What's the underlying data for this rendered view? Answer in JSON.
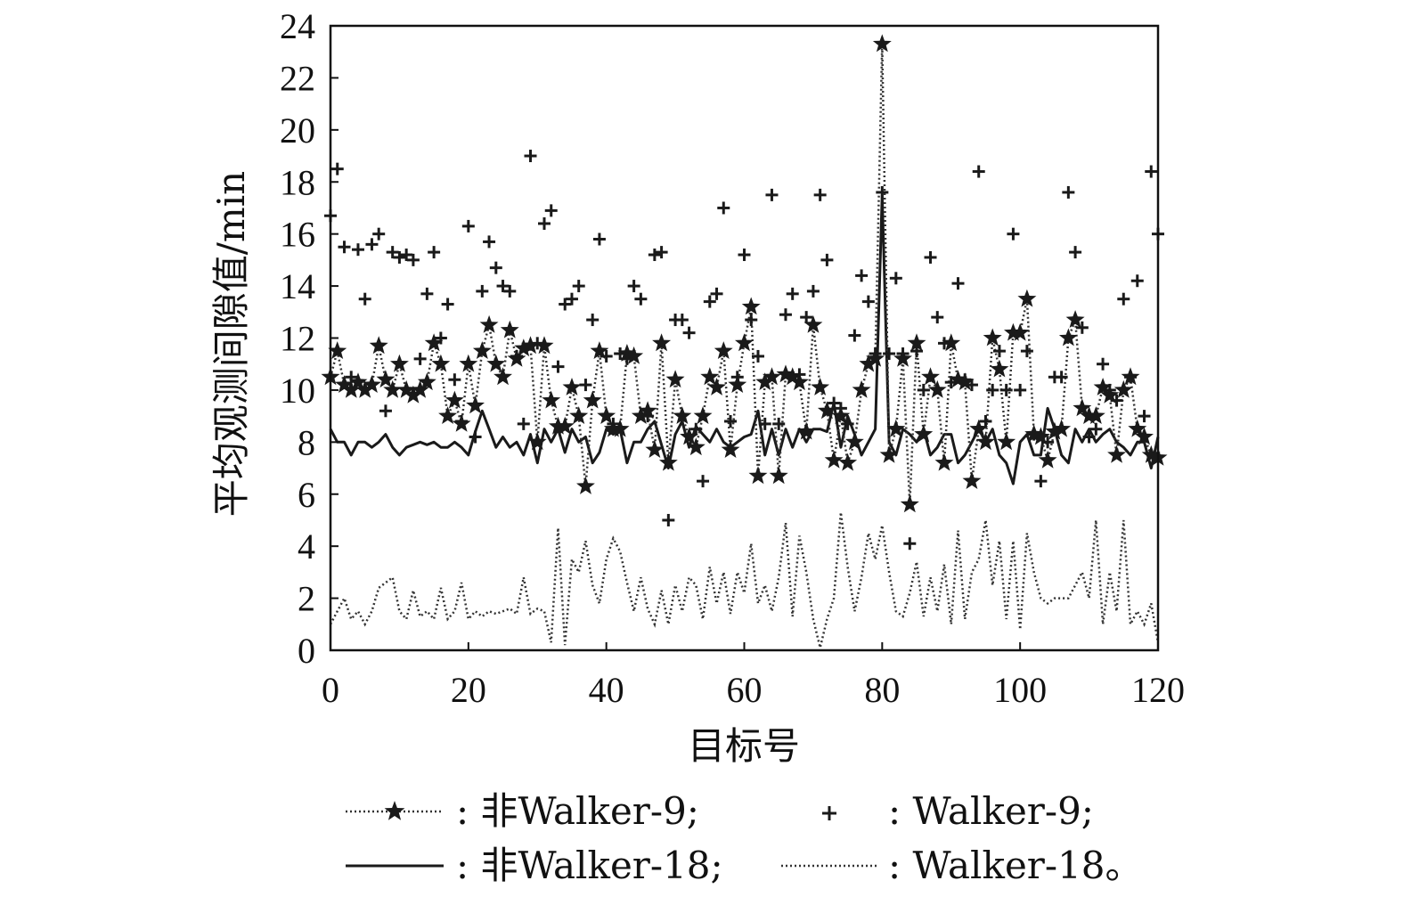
{
  "chart_data": {
    "type": "line",
    "xlabel": "目标号",
    "ylabel": "平均观测间隙值/min",
    "xlim": [
      0,
      120
    ],
    "ylim": [
      0,
      24
    ],
    "xticks": [
      0,
      20,
      40,
      60,
      80,
      100,
      120
    ],
    "yticks": [
      0,
      2,
      4,
      6,
      8,
      10,
      12,
      14,
      16,
      18,
      20,
      22,
      24
    ],
    "grid": false,
    "legend_position": "bottom",
    "colors": {
      "axis": "#111111",
      "series": "#1a1a1a",
      "dotted": "#333333"
    },
    "series": [
      {
        "name": ": 非Walker-9;",
        "style": "dotted-star",
        "x": [
          0,
          1,
          2,
          3,
          4,
          5,
          6,
          7,
          8,
          9,
          10,
          11,
          12,
          13,
          14,
          15,
          16,
          17,
          18,
          19,
          20,
          21,
          22,
          23,
          24,
          25,
          26,
          27,
          28,
          29,
          30,
          31,
          32,
          33,
          34,
          35,
          36,
          37,
          38,
          39,
          40,
          41,
          42,
          43,
          44,
          45,
          46,
          47,
          48,
          49,
          50,
          51,
          52,
          53,
          54,
          55,
          56,
          57,
          58,
          59,
          60,
          61,
          62,
          63,
          64,
          65,
          66,
          67,
          68,
          69,
          70,
          71,
          72,
          73,
          74,
          75,
          76,
          77,
          78,
          79,
          80,
          81,
          82,
          83,
          84,
          85,
          86,
          87,
          88,
          89,
          90,
          91,
          92,
          93,
          94,
          95,
          96,
          97,
          98,
          99,
          100,
          101,
          102,
          103,
          104,
          105,
          106,
          107,
          108,
          109,
          110,
          111,
          112,
          113,
          114,
          115,
          116,
          117,
          118,
          119,
          120
        ],
        "y": [
          10.5,
          11.5,
          10.2,
          10.0,
          10.3,
          10.0,
          10.2,
          11.7,
          10.4,
          10.0,
          11.0,
          10.0,
          9.8,
          10.0,
          10.3,
          11.8,
          11.0,
          9.0,
          9.6,
          8.7,
          11.0,
          9.4,
          11.5,
          12.5,
          11.0,
          10.5,
          12.3,
          11.2,
          11.6,
          11.7,
          8.0,
          11.7,
          9.6,
          8.6,
          8.6,
          10.1,
          9.0,
          6.3,
          9.6,
          11.5,
          9.0,
          8.5,
          8.5,
          11.4,
          11.3,
          9.0,
          9.2,
          7.7,
          11.8,
          7.2,
          10.4,
          9.0,
          8.2,
          7.8,
          9.0,
          10.5,
          10.1,
          11.5,
          7.7,
          10.2,
          11.8,
          13.2,
          6.7,
          10.3,
          10.5,
          6.7,
          10.6,
          10.5,
          10.3,
          8.4,
          12.5,
          10.1,
          9.2,
          7.3,
          9.0,
          7.2,
          8.0,
          10.0,
          11.0,
          11.2,
          23.3,
          7.5,
          8.5,
          11.2,
          5.6,
          11.8,
          8.3,
          10.5,
          10.0,
          7.2,
          11.8,
          10.4,
          10.3,
          6.5,
          8.5,
          8.0,
          12.0,
          10.8,
          8.0,
          12.2,
          12.2,
          13.5,
          8.3,
          8.2,
          7.3,
          8.4,
          8.5,
          12.0,
          12.7,
          9.3,
          9.0,
          9.0,
          10.1,
          9.8,
          7.5,
          10.0,
          10.5,
          8.5,
          8.2,
          7.5,
          7.4
        ]
      },
      {
        "name": ": Walker-9;",
        "style": "plus",
        "x": [
          0,
          1,
          2,
          3,
          4,
          5,
          6,
          7,
          8,
          9,
          10,
          11,
          12,
          13,
          14,
          15,
          16,
          17,
          18,
          19,
          20,
          21,
          22,
          23,
          24,
          25,
          26,
          27,
          28,
          29,
          30,
          31,
          32,
          33,
          34,
          35,
          36,
          37,
          38,
          39,
          40,
          41,
          42,
          43,
          44,
          45,
          46,
          47,
          48,
          49,
          50,
          51,
          52,
          53,
          54,
          55,
          56,
          57,
          58,
          59,
          60,
          61,
          62,
          63,
          64,
          65,
          66,
          67,
          68,
          69,
          70,
          71,
          72,
          73,
          74,
          75,
          76,
          77,
          78,
          79,
          80,
          81,
          82,
          83,
          84,
          85,
          86,
          87,
          88,
          89,
          90,
          91,
          92,
          93,
          94,
          95,
          96,
          97,
          98,
          99,
          100,
          101,
          102,
          103,
          104,
          105,
          106,
          107,
          108,
          109,
          110,
          111,
          112,
          113,
          114,
          115,
          116,
          117,
          118,
          119,
          120
        ],
        "y": [
          16.7,
          18.5,
          15.5,
          10.5,
          15.4,
          13.5,
          15.6,
          16.0,
          9.2,
          15.3,
          15.1,
          15.2,
          15.0,
          11.2,
          13.7,
          15.3,
          12.0,
          13.3,
          10.4,
          8.8,
          16.3,
          8.2,
          13.8,
          15.7,
          14.7,
          14.0,
          13.8,
          11.3,
          8.7,
          19.0,
          11.8,
          16.4,
          16.9,
          10.9,
          13.3,
          13.5,
          14.0,
          10.2,
          12.7,
          15.8,
          11.3,
          8.7,
          11.4,
          11.2,
          14.0,
          13.5,
          9.0,
          15.2,
          15.3,
          5.0,
          12.7,
          12.7,
          12.2,
          8.5,
          6.5,
          13.4,
          13.7,
          17.0,
          8.8,
          10.5,
          15.2,
          12.7,
          11.3,
          8.7,
          17.5,
          8.7,
          12.9,
          13.7,
          10.6,
          12.8,
          13.8,
          17.5,
          15.0,
          9.5,
          9.3,
          8.7,
          12.1,
          14.4,
          13.4,
          11.4,
          17.6,
          11.4,
          14.3,
          11.4,
          4.1,
          11.5,
          10.0,
          15.1,
          12.8,
          11.8,
          10.3,
          14.1,
          10.4,
          10.2,
          18.4,
          8.8,
          10.0,
          11.5,
          10.0,
          16.0,
          10.0,
          11.5,
          8.3,
          6.5,
          8.0,
          10.5,
          10.5,
          17.6,
          15.3,
          12.4,
          8.2,
          8.5,
          11.0,
          10.0,
          9.6,
          13.5,
          10.5,
          14.2,
          9.0,
          18.4,
          16.0
        ]
      },
      {
        "name": ": 非Walker-18;",
        "style": "solid",
        "x": [
          0,
          1,
          2,
          3,
          4,
          5,
          6,
          7,
          8,
          9,
          10,
          11,
          12,
          13,
          14,
          15,
          16,
          17,
          18,
          19,
          20,
          21,
          22,
          23,
          24,
          25,
          26,
          27,
          28,
          29,
          30,
          31,
          32,
          33,
          34,
          35,
          36,
          37,
          38,
          39,
          40,
          41,
          42,
          43,
          44,
          45,
          46,
          47,
          48,
          49,
          50,
          51,
          52,
          53,
          54,
          55,
          56,
          57,
          58,
          59,
          60,
          61,
          62,
          63,
          64,
          65,
          66,
          67,
          68,
          69,
          70,
          71,
          72,
          73,
          74,
          75,
          76,
          77,
          78,
          79,
          80,
          81,
          82,
          83,
          84,
          85,
          86,
          87,
          88,
          89,
          90,
          91,
          92,
          93,
          94,
          95,
          96,
          97,
          98,
          99,
          100,
          101,
          102,
          103,
          104,
          105,
          106,
          107,
          108,
          109,
          110,
          111,
          112,
          113,
          114,
          115,
          116,
          117,
          118,
          119,
          120
        ],
        "y": [
          8.5,
          8.0,
          8.0,
          7.5,
          8.0,
          8.0,
          7.8,
          8.0,
          8.3,
          7.8,
          7.5,
          7.8,
          7.9,
          8.0,
          7.9,
          8.0,
          7.8,
          7.8,
          8.0,
          7.8,
          7.5,
          8.4,
          9.2,
          8.5,
          7.8,
          8.2,
          7.8,
          8.0,
          7.5,
          8.3,
          7.2,
          8.5,
          8.0,
          8.5,
          7.6,
          8.5,
          8.0,
          8.2,
          7.2,
          7.6,
          8.5,
          8.3,
          8.5,
          7.2,
          8.0,
          8.0,
          8.5,
          8.8,
          7.9,
          7.0,
          8.3,
          8.8,
          7.8,
          8.6,
          8.3,
          8.0,
          8.5,
          8.0,
          7.8,
          8.0,
          8.2,
          8.3,
          9.2,
          7.5,
          8.5,
          7.5,
          8.5,
          7.8,
          8.5,
          8.0,
          8.5,
          8.5,
          8.4,
          9.5,
          7.8,
          9.0,
          8.3,
          7.5,
          8.0,
          8.5,
          17.5,
          8.0,
          7.5,
          8.5,
          8.3,
          8.0,
          8.5,
          7.5,
          7.8,
          8.3,
          8.3,
          7.2,
          7.5,
          8.0,
          8.5,
          8.0,
          8.5,
          7.5,
          7.2,
          6.4,
          8.0,
          8.3,
          7.5,
          7.5,
          9.3,
          8.5,
          7.5,
          7.2,
          8.5,
          8.0,
          8.5,
          8.0,
          8.3,
          8.5,
          8.0,
          7.8,
          7.5,
          8.0,
          8.0,
          7.0,
          8.2
        ]
      },
      {
        "name": ": Walker-18。",
        "style": "dotted",
        "x": [
          0,
          1,
          2,
          3,
          4,
          5,
          6,
          7,
          8,
          9,
          10,
          11,
          12,
          13,
          14,
          15,
          16,
          17,
          18,
          19,
          20,
          21,
          22,
          23,
          24,
          25,
          26,
          27,
          28,
          29,
          30,
          31,
          32,
          33,
          34,
          35,
          36,
          37,
          38,
          39,
          40,
          41,
          42,
          43,
          44,
          45,
          46,
          47,
          48,
          49,
          50,
          51,
          52,
          53,
          54,
          55,
          56,
          57,
          58,
          59,
          60,
          61,
          62,
          63,
          64,
          65,
          66,
          67,
          68,
          69,
          70,
          71,
          72,
          73,
          74,
          75,
          76,
          77,
          78,
          79,
          80,
          81,
          82,
          83,
          84,
          85,
          86,
          87,
          88,
          89,
          90,
          91,
          92,
          93,
          94,
          95,
          96,
          97,
          98,
          99,
          100,
          101,
          102,
          103,
          104,
          105,
          106,
          107,
          108,
          109,
          110,
          111,
          112,
          113,
          114,
          115,
          116,
          117,
          118,
          119,
          120
        ],
        "y": [
          1.0,
          1.5,
          2.0,
          1.2,
          1.5,
          1.0,
          1.5,
          2.4,
          2.6,
          2.8,
          1.5,
          1.2,
          2.3,
          1.3,
          1.5,
          1.2,
          2.4,
          1.2,
          1.5,
          2.6,
          1.2,
          1.5,
          1.3,
          1.5,
          1.4,
          1.5,
          1.6,
          1.4,
          2.8,
          1.4,
          1.6,
          1.5,
          0.3,
          4.7,
          0.2,
          3.5,
          3.0,
          4.2,
          2.5,
          1.8,
          3.5,
          4.3,
          3.8,
          2.6,
          1.5,
          2.8,
          1.6,
          1.0,
          2.3,
          1.0,
          2.5,
          1.5,
          2.8,
          2.5,
          1.2,
          3.2,
          1.8,
          3.0,
          1.4,
          3.0,
          2.2,
          4.1,
          1.8,
          2.5,
          1.5,
          2.8,
          4.9,
          1.3,
          4.4,
          3.0,
          1.2,
          0.1,
          1.2,
          2.0,
          5.3,
          3.2,
          1.5,
          2.8,
          4.5,
          3.5,
          4.8,
          3.0,
          1.5,
          1.3,
          2.2,
          3.4,
          1.3,
          2.8,
          1.5,
          3.3,
          1.0,
          4.6,
          1.2,
          3.0,
          3.5,
          5.0,
          2.5,
          4.2,
          1.2,
          4.2,
          0.8,
          4.5,
          3.0,
          2.0,
          1.8,
          2.0,
          2.0,
          2.0,
          2.5,
          3.0,
          2.0,
          5.0,
          1.0,
          3.0,
          1.5,
          5.0,
          1.0,
          1.5,
          1.0,
          1.8,
          0.3
        ]
      }
    ]
  }
}
